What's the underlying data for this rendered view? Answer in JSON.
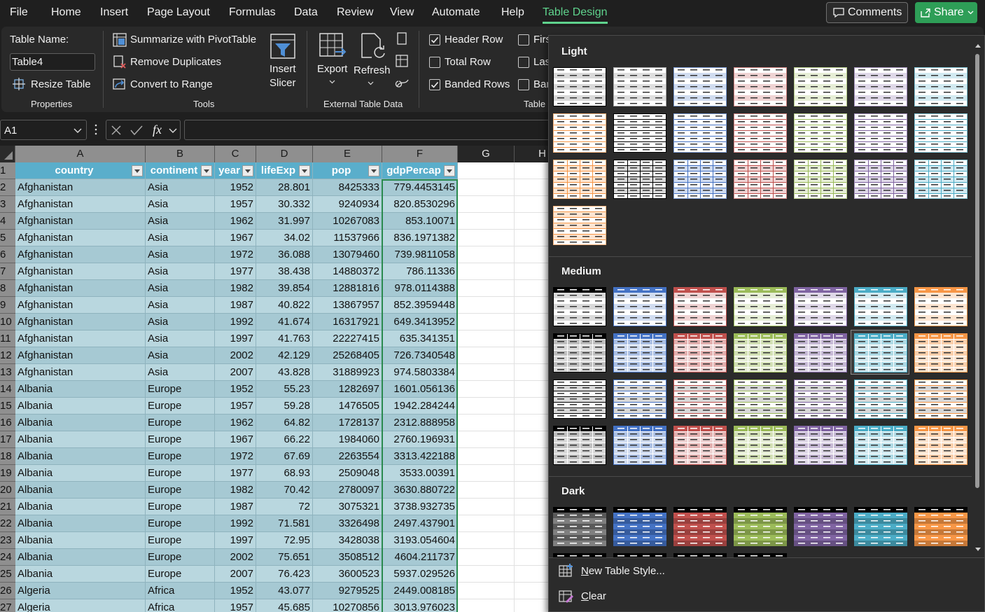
{
  "menu": {
    "tabs": [
      "File",
      "Home",
      "Insert",
      "Page Layout",
      "Formulas",
      "Data",
      "Review",
      "View",
      "Automate",
      "Help",
      "Table Design"
    ],
    "comments": "Comments",
    "share": "Share"
  },
  "ribbon": {
    "properties": {
      "label": "Table Name:",
      "table_name": "Table4",
      "resize": "Resize Table",
      "group": "Properties"
    },
    "tools": {
      "items": [
        "Summarize with PivotTable",
        "Remove Duplicates",
        "Convert to Range"
      ],
      "group": "Tools"
    },
    "slicer": [
      "Insert",
      "Slicer"
    ],
    "external": {
      "export": "Export",
      "refresh": "Refresh",
      "group": "External Table Data"
    },
    "options": {
      "items": [
        {
          "label": "Header Row",
          "checked": true
        },
        {
          "label": "Total Row",
          "checked": false
        },
        {
          "label": "Banded Rows",
          "checked": true
        },
        {
          "label": "First Column",
          "checked": false
        },
        {
          "label": "Last Column",
          "checked": false
        },
        {
          "label": "Banded Columns",
          "checked": false
        }
      ],
      "group": "Table Style Options"
    }
  },
  "formula_bar": {
    "name_box": "A1",
    "fx": "fx"
  },
  "sheet": {
    "columns": [
      "A",
      "B",
      "C",
      "D",
      "E",
      "F",
      "G",
      "H"
    ],
    "row_labels": [
      1,
      2,
      3,
      4,
      5,
      6,
      7,
      8,
      9,
      10,
      11,
      12,
      13,
      14,
      15,
      16,
      17,
      18,
      19,
      20,
      21,
      22,
      23,
      24,
      25,
      26,
      27
    ],
    "rows": [
      [
        "country",
        "continent",
        "year",
        "lifeExp",
        "pop",
        "gdpPercap"
      ],
      [
        "Afghanistan",
        "Asia",
        1952,
        28.801,
        8425333,
        779.4453145
      ],
      [
        "Afghanistan",
        "Asia",
        1957,
        30.332,
        9240934,
        820.8530296
      ],
      [
        "Afghanistan",
        "Asia",
        1962,
        31.997,
        10267083,
        853.10071
      ],
      [
        "Afghanistan",
        "Asia",
        1967,
        34.02,
        11537966,
        836.1971382
      ],
      [
        "Afghanistan",
        "Asia",
        1972,
        36.088,
        13079460,
        739.9811058
      ],
      [
        "Afghanistan",
        "Asia",
        1977,
        38.438,
        14880372,
        786.11336
      ],
      [
        "Afghanistan",
        "Asia",
        1982,
        39.854,
        12881816,
        978.0114388
      ],
      [
        "Afghanistan",
        "Asia",
        1987,
        40.822,
        13867957,
        852.3959448
      ],
      [
        "Afghanistan",
        "Asia",
        1992,
        41.674,
        16317921,
        649.3413952
      ],
      [
        "Afghanistan",
        "Asia",
        1997,
        41.763,
        22227415,
        635.341351
      ],
      [
        "Afghanistan",
        "Asia",
        2002,
        42.129,
        25268405,
        726.7340548
      ],
      [
        "Afghanistan",
        "Asia",
        2007,
        43.828,
        31889923,
        974.5803384
      ],
      [
        "Albania",
        "Europe",
        1952,
        55.23,
        1282697,
        1601.056136
      ],
      [
        "Albania",
        "Europe",
        1957,
        59.28,
        1476505,
        1942.284244
      ],
      [
        "Albania",
        "Europe",
        1962,
        64.82,
        1728137,
        2312.888958
      ],
      [
        "Albania",
        "Europe",
        1967,
        66.22,
        1984060,
        2760.196931
      ],
      [
        "Albania",
        "Europe",
        1972,
        67.69,
        2263554,
        3313.422188
      ],
      [
        "Albania",
        "Europe",
        1977,
        68.93,
        2509048,
        3533.00391
      ],
      [
        "Albania",
        "Europe",
        1982,
        70.42,
        2780097,
        3630.880722
      ],
      [
        "Albania",
        "Europe",
        1987,
        72,
        3075321,
        3738.932735
      ],
      [
        "Albania",
        "Europe",
        1992,
        71.581,
        3326498,
        2497.437901
      ],
      [
        "Albania",
        "Europe",
        1997,
        72.95,
        3428038,
        3193.054604
      ],
      [
        "Albania",
        "Europe",
        2002,
        75.651,
        3508512,
        4604.211737
      ],
      [
        "Albania",
        "Europe",
        2007,
        76.423,
        3600523,
        5937.029526
      ],
      [
        "Algeria",
        "Africa",
        1952,
        43.077,
        9279525,
        2449.008185
      ],
      [
        "Algeria",
        "Africa",
        1957,
        45.685,
        10270856,
        3013.976023
      ]
    ]
  },
  "gallery": {
    "sections": [
      "Light",
      "Medium",
      "Dark"
    ],
    "footer": [
      "New Table Style...",
      "Clear"
    ]
  }
}
